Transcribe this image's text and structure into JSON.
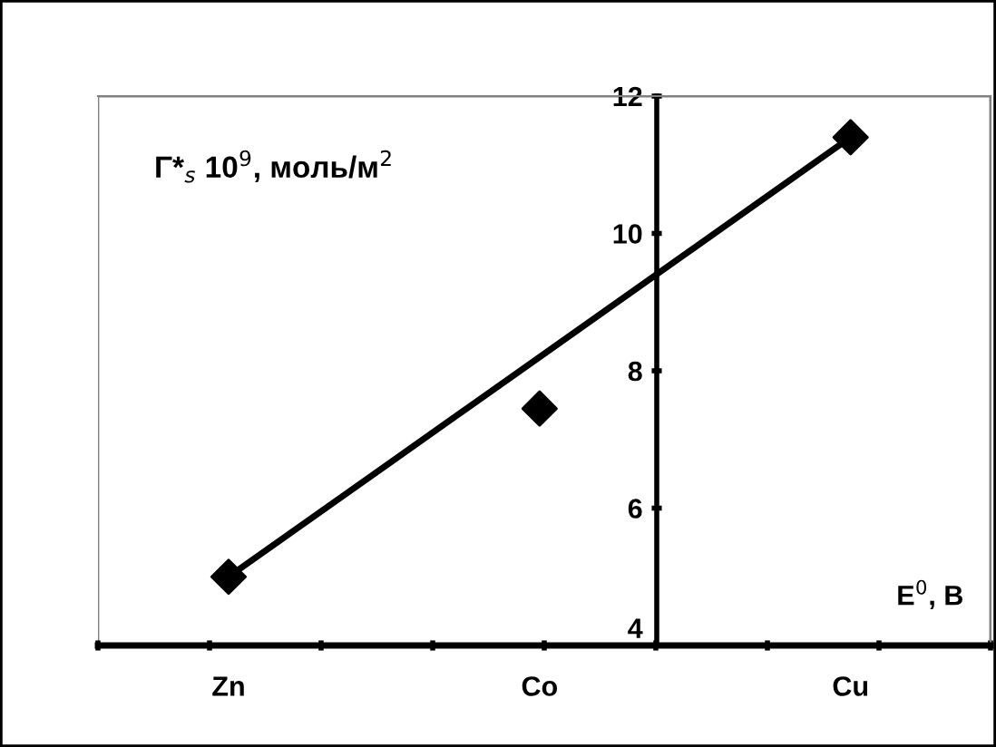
{
  "chart_data": {
    "type": "scatter",
    "ylabel": "Γ*$_{s}$ 10$^{9}$, моль/м$^{2}$",
    "xlabel": "E$^{0}$, В",
    "categories": [
      "Zn",
      "Co",
      "Cu"
    ],
    "series": [
      {
        "color": "#000000",
        "values": [
          5.0,
          7.45,
          11.4
        ],
        "marker": "diamond"
      },
      {
        "type": "line",
        "color": "#000000",
        "values": [
          5.0,
          8.2,
          11.4
        ],
        "marker": "none",
        "line_style": "solid"
      }
    ],
    "ylim": [
      4,
      12
    ],
    "yticks": [
      4,
      6,
      8,
      10,
      12
    ],
    "grid": false,
    "legend": false
  }
}
